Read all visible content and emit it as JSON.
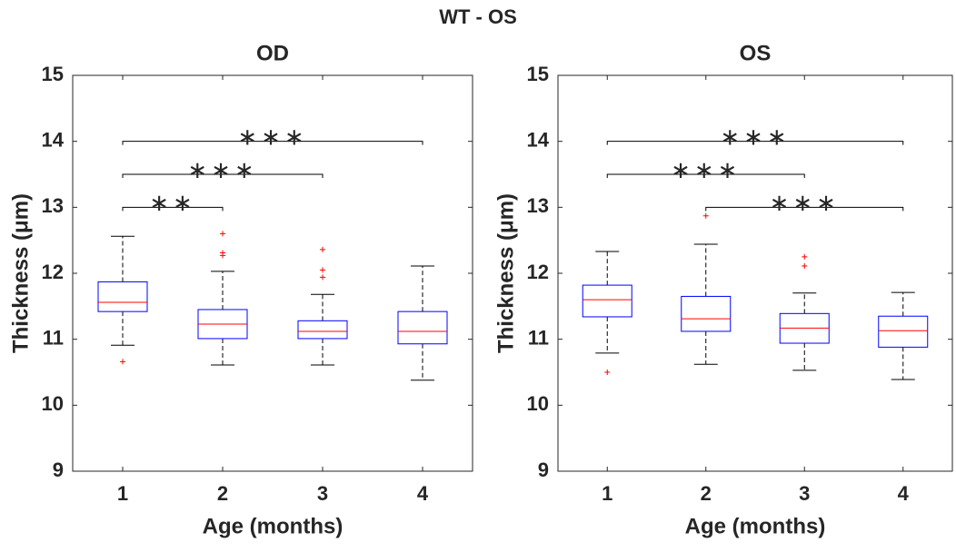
{
  "title": "WT - OS",
  "chart_data": [
    {
      "type": "box",
      "title": "OD",
      "x_label": "Age (months)",
      "y_label": "Thickness (μm)",
      "x": [
        1,
        2,
        3,
        4
      ],
      "xlim": [
        0.5,
        4.5
      ],
      "xticks": [
        1,
        2,
        3,
        4
      ],
      "ylim": [
        9,
        15
      ],
      "yticks": [
        9,
        10,
        11,
        12,
        13,
        14,
        15
      ],
      "box_color": "#0000ff",
      "median_color": "#ff0000",
      "whisker_color": "#000000",
      "outlier_color": "#ff0000",
      "boxes": [
        {
          "whislo": 10.91,
          "q1": 11.42,
          "med": 11.56,
          "q3": 11.87,
          "whishi": 12.56,
          "fliers": [
            10.66
          ]
        },
        {
          "whislo": 10.61,
          "q1": 11.01,
          "med": 11.23,
          "q3": 11.45,
          "whishi": 12.03,
          "fliers": [
            12.6,
            12.31,
            12.27
          ]
        },
        {
          "whislo": 10.61,
          "q1": 11.01,
          "med": 11.12,
          "q3": 11.28,
          "whishi": 11.68,
          "fliers": [
            12.36,
            12.05,
            11.94
          ]
        },
        {
          "whislo": 10.38,
          "q1": 10.93,
          "med": 11.12,
          "q3": 11.42,
          "whishi": 12.11,
          "fliers": []
        }
      ],
      "brackets": [
        {
          "x": [
            1,
            2
          ],
          "y": 13,
          "label": "∗∗"
        },
        {
          "x": [
            1,
            3
          ],
          "y": 13.5,
          "label": "∗∗∗"
        },
        {
          "x": [
            1,
            4
          ],
          "y": 14,
          "label": "∗∗∗"
        }
      ]
    },
    {
      "type": "box",
      "title": "OS",
      "x_label": "Age (months)",
      "y_label": "Thickness (μm)",
      "x": [
        1,
        2,
        3,
        4
      ],
      "xlim": [
        0.5,
        4.5
      ],
      "xticks": [
        1,
        2,
        3,
        4
      ],
      "ylim": [
        9,
        15
      ],
      "yticks": [
        9,
        10,
        11,
        12,
        13,
        14,
        15
      ],
      "box_color": "#0000ff",
      "median_color": "#ff0000",
      "whisker_color": "#000000",
      "outlier_color": "#ff0000",
      "boxes": [
        {
          "whislo": 10.79,
          "q1": 11.34,
          "med": 11.6,
          "q3": 11.82,
          "whishi": 12.33,
          "fliers": [
            10.5
          ]
        },
        {
          "whislo": 10.62,
          "q1": 11.12,
          "med": 11.31,
          "q3": 11.65,
          "whishi": 12.44,
          "fliers": [
            12.87
          ]
        },
        {
          "whislo": 10.53,
          "q1": 10.94,
          "med": 11.17,
          "q3": 11.39,
          "whishi": 11.7,
          "fliers": [
            12.25,
            12.11
          ]
        },
        {
          "whislo": 10.39,
          "q1": 10.88,
          "med": 11.13,
          "q3": 11.35,
          "whishi": 11.71,
          "fliers": []
        }
      ],
      "brackets": [
        {
          "x": [
            1,
            4
          ],
          "y": 14,
          "label": "∗∗∗"
        },
        {
          "x": [
            1,
            3
          ],
          "y": 13.5,
          "label": "∗∗∗"
        },
        {
          "x": [
            2,
            4
          ],
          "y": 13,
          "label": "∗∗∗"
        }
      ]
    }
  ]
}
